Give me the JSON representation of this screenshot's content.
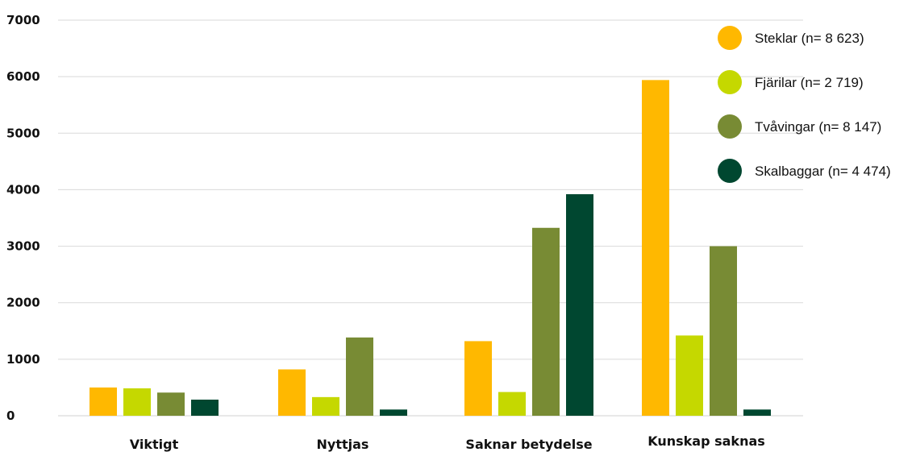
{
  "chart_data": {
    "type": "bar",
    "categories": [
      "Viktigt",
      "Nyttjas",
      "Saknar betydelse",
      "Kunskap saknas"
    ],
    "series": [
      {
        "name": "Steklar (n= 8 623)",
        "color": "#FFB800",
        "values": [
          500,
          820,
          1320,
          5940
        ]
      },
      {
        "name": "Fjärilar (n= 2 719)",
        "color": "#C5D800",
        "values": [
          485,
          330,
          420,
          1420
        ]
      },
      {
        "name": "Tvåvingar (n= 8 147)",
        "color": "#788B34",
        "values": [
          410,
          1385,
          3325,
          3000
        ]
      },
      {
        "name": "Skalbaggar (n= 4 474)",
        "color": "#004730",
        "values": [
          285,
          110,
          3920,
          110
        ]
      }
    ],
    "ylim": [
      0,
      7000
    ],
    "yticks": [
      "0",
      "1000",
      "2000",
      "3000",
      "4000",
      "5000",
      "6000",
      "7000"
    ],
    "grid": true,
    "legend_position": "top-right"
  }
}
